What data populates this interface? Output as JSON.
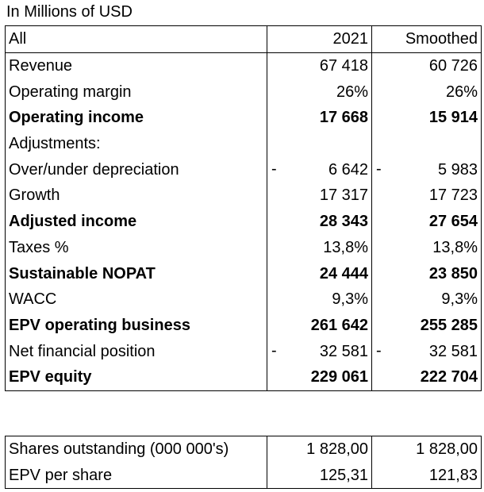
{
  "caption": "In Millions of USD",
  "header": {
    "label": "All",
    "col1": "2021",
    "col2": "Smoothed"
  },
  "rows": [
    {
      "label": "Revenue",
      "v1": "67 418",
      "v2": "60 726",
      "bold": false,
      "neg": false
    },
    {
      "label": "Operating margin",
      "v1": "26%",
      "v2": "26%",
      "bold": false,
      "neg": false
    },
    {
      "label": "Operating income",
      "v1": "17 668",
      "v2": "15 914",
      "bold": true,
      "neg": false
    },
    {
      "label": "Adjustments:",
      "v1": "",
      "v2": "",
      "bold": false,
      "neg": false
    },
    {
      "label": "Over/under depreciation",
      "v1": "6 642",
      "v2": "5 983",
      "bold": false,
      "neg": true
    },
    {
      "label": "Growth",
      "v1": "17 317",
      "v2": "17 723",
      "bold": false,
      "neg": false
    },
    {
      "label": "Adjusted income",
      "v1": "28 343",
      "v2": "27 654",
      "bold": true,
      "neg": false
    },
    {
      "label": "Taxes %",
      "v1": "13,8%",
      "v2": "13,8%",
      "bold": false,
      "neg": false
    },
    {
      "label": "Sustainable NOPAT",
      "v1": "24 444",
      "v2": "23 850",
      "bold": true,
      "neg": false
    },
    {
      "label": "WACC",
      "v1": "9,3%",
      "v2": "9,3%",
      "bold": false,
      "neg": false
    },
    {
      "label": "EPV operating business",
      "v1": "261 642",
      "v2": "255 285",
      "bold": true,
      "neg": false
    },
    {
      "label": "Net financial position",
      "v1": "32 581",
      "v2": "32 581",
      "bold": false,
      "neg": true
    },
    {
      "label": "EPV equity",
      "v1": "229 061",
      "v2": "222 704",
      "bold": true,
      "neg": false
    }
  ],
  "dash": "-",
  "summary": [
    {
      "label": "Shares outstanding (000 000's)",
      "v1": "1 828,00",
      "v2": "1 828,00"
    },
    {
      "label": "EPV per share",
      "v1": "125,31",
      "v2": "121,83"
    }
  ]
}
